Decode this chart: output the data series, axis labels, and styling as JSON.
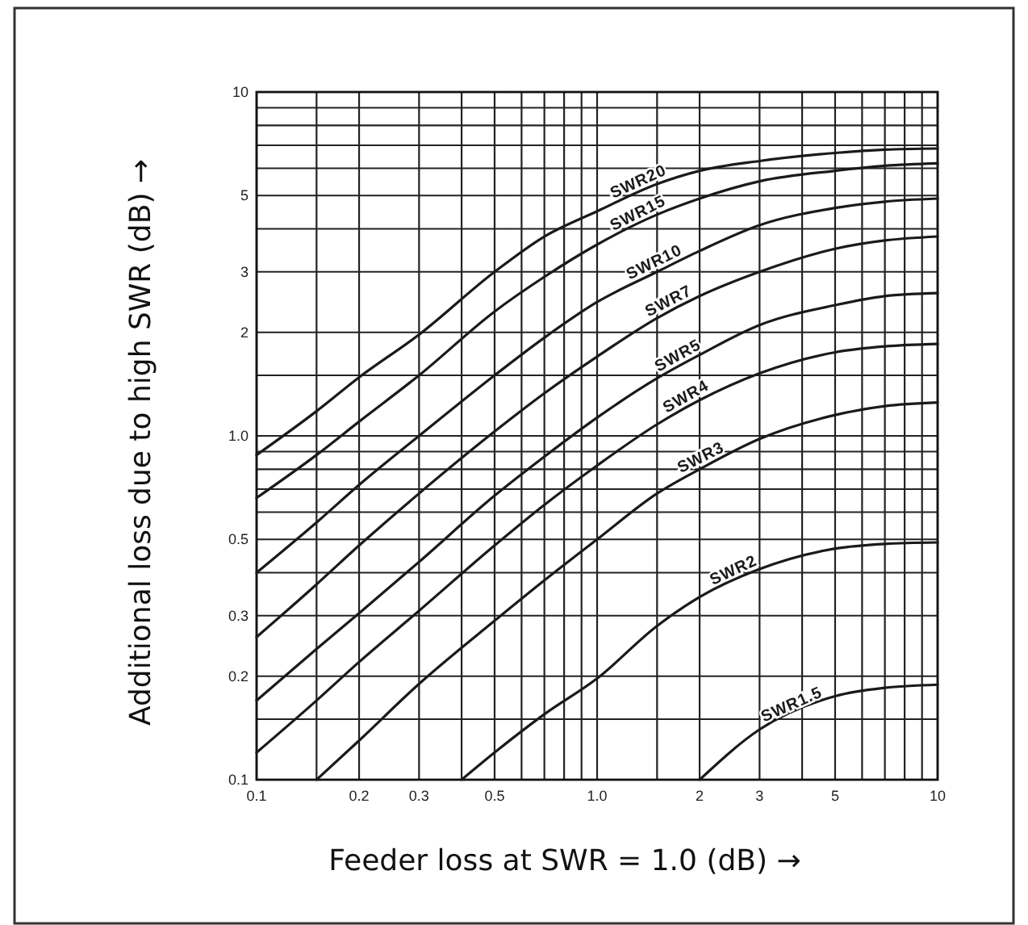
{
  "chart_data": {
    "type": "line",
    "xlabel": "Feeder loss at SWR = 1.0 (dB) →",
    "ylabel": "Additional loss due to high SWR (dB) →",
    "log": "xy",
    "xlim": [
      0.1,
      10
    ],
    "ylim": [
      0.1,
      10
    ],
    "xticks": [
      0.1,
      {
        "value": 0.15,
        "label": null
      },
      0.2,
      0.3,
      {
        "value": 0.4,
        "label": null
      },
      0.5,
      {
        "value": 0.6,
        "label": null
      },
      {
        "value": 0.7,
        "label": null
      },
      {
        "value": 0.8,
        "label": null
      },
      {
        "value": 0.9,
        "label": null
      },
      {
        "value": 1,
        "label": "1.0"
      },
      {
        "value": 1.5,
        "label": null
      },
      2,
      3,
      {
        "value": 4,
        "label": null
      },
      5,
      {
        "value": 6,
        "label": null
      },
      {
        "value": 7,
        "label": null
      },
      {
        "value": 8,
        "label": null
      },
      {
        "value": 9,
        "label": null
      },
      10
    ],
    "yticks": [
      0.1,
      {
        "value": 0.15,
        "label": null
      },
      0.2,
      0.3,
      {
        "value": 0.4,
        "label": null
      },
      0.5,
      {
        "value": 0.6,
        "label": null
      },
      {
        "value": 0.7,
        "label": null
      },
      {
        "value": 0.8,
        "label": null
      },
      {
        "value": 0.9,
        "label": null
      },
      {
        "value": 1,
        "label": "1.0"
      },
      {
        "value": 1.5,
        "label": null
      },
      2,
      3,
      {
        "value": 4,
        "label": null
      },
      5,
      {
        "value": 6,
        "label": null
      },
      {
        "value": 7,
        "label": null
      },
      {
        "value": 8,
        "label": null
      },
      {
        "value": 9,
        "label": null
      },
      10
    ],
    "grid": true,
    "series": [
      {
        "name": "SWR20",
        "color": "#1a1a1a",
        "x": [
          0.1,
          0.15,
          0.2,
          0.3,
          0.5,
          0.7,
          1,
          1.5,
          2,
          3,
          5,
          7,
          10
        ],
        "values": [
          0.88,
          1.18,
          1.48,
          1.97,
          3.0,
          3.8,
          4.5,
          5.4,
          5.9,
          6.3,
          6.65,
          6.8,
          6.85
        ]
      },
      {
        "name": "SWR15",
        "color": "#1a1a1a",
        "x": [
          0.1,
          0.15,
          0.2,
          0.3,
          0.5,
          0.7,
          1,
          1.5,
          2,
          3,
          5,
          7,
          10
        ],
        "values": [
          0.66,
          0.88,
          1.1,
          1.5,
          2.3,
          2.9,
          3.6,
          4.4,
          4.9,
          5.5,
          5.9,
          6.1,
          6.2
        ]
      },
      {
        "name": "SWR10",
        "color": "#1a1a1a",
        "x": [
          0.1,
          0.15,
          0.2,
          0.3,
          0.5,
          0.7,
          1,
          1.5,
          2,
          3,
          5,
          7,
          10
        ],
        "values": [
          0.4,
          0.56,
          0.72,
          1.0,
          1.5,
          1.93,
          2.45,
          3.0,
          3.45,
          4.1,
          4.6,
          4.8,
          4.9
        ]
      },
      {
        "name": "SWR7",
        "color": "#1a1a1a",
        "x": [
          0.1,
          0.15,
          0.2,
          0.3,
          0.5,
          0.7,
          1,
          1.5,
          2,
          3,
          5,
          7,
          10
        ],
        "values": [
          0.26,
          0.37,
          0.48,
          0.68,
          1.03,
          1.33,
          1.7,
          2.2,
          2.55,
          3.0,
          3.5,
          3.7,
          3.8
        ]
      },
      {
        "name": "SWR5",
        "color": "#1a1a1a",
        "x": [
          0.1,
          0.15,
          0.2,
          0.3,
          0.5,
          0.7,
          1,
          1.5,
          2,
          3,
          5,
          7,
          10
        ],
        "values": [
          0.17,
          0.24,
          0.305,
          0.43,
          0.67,
          0.87,
          1.13,
          1.47,
          1.72,
          2.1,
          2.4,
          2.55,
          2.6
        ]
      },
      {
        "name": "SWR4",
        "color": "#1a1a1a",
        "x": [
          0.1,
          0.15,
          0.2,
          0.3,
          0.5,
          0.7,
          1,
          1.5,
          2,
          3,
          5,
          7,
          10
        ],
        "values": [
          0.12,
          0.17,
          0.22,
          0.31,
          0.48,
          0.63,
          0.82,
          1.08,
          1.27,
          1.52,
          1.75,
          1.82,
          1.85
        ]
      },
      {
        "name": "SWR3",
        "color": "#1a1a1a",
        "x": [
          0.15,
          0.2,
          0.3,
          0.5,
          0.7,
          1,
          1.5,
          2,
          3,
          5,
          7,
          10
        ],
        "values": [
          0.1,
          0.13,
          0.19,
          0.29,
          0.38,
          0.5,
          0.68,
          0.8,
          0.98,
          1.15,
          1.22,
          1.25
        ]
      },
      {
        "name": "SWR2",
        "color": "#1a1a1a",
        "x": [
          0.4,
          0.5,
          0.7,
          1,
          1.5,
          2,
          3,
          5,
          7,
          10
        ],
        "values": [
          0.1,
          0.12,
          0.155,
          0.197,
          0.28,
          0.34,
          0.41,
          0.47,
          0.485,
          0.49
        ]
      },
      {
        "name": "SWR1.5",
        "color": "#1a1a1a",
        "x": [
          2,
          3,
          5,
          7,
          10
        ],
        "values": [
          0.1,
          0.14,
          0.175,
          0.185,
          0.189
        ]
      }
    ]
  }
}
